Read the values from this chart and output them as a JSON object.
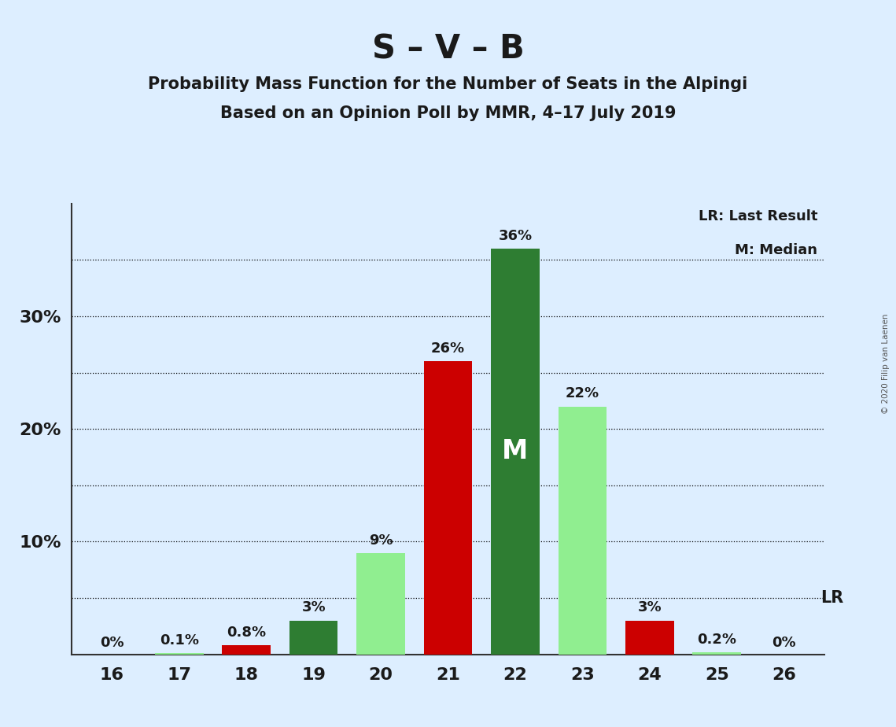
{
  "title": "S – V – B",
  "subtitle1": "Probability Mass Function for the Number of Seats in the Alpingi",
  "subtitle2": "Based on an Opinion Poll by MMR, 4–17 July 2019",
  "copyright": "© 2020 Filip van Laenen",
  "categories": [
    16,
    17,
    18,
    19,
    20,
    21,
    22,
    23,
    24,
    25,
    26
  ],
  "values": [
    0,
    0.1,
    0.8,
    3,
    9,
    26,
    36,
    22,
    3,
    0.2,
    0
  ],
  "bar_colors": [
    "#90ee90",
    "#90ee90",
    "#cc0000",
    "#2e7d32",
    "#90ee90",
    "#cc0000",
    "#2e7d32",
    "#90ee90",
    "#cc0000",
    "#90ee90",
    "#90ee90"
  ],
  "labels": [
    "0%",
    "0.1%",
    "0.8%",
    "3%",
    "9%",
    "26%",
    "36%",
    "22%",
    "3%",
    "0.2%",
    "0%"
  ],
  "median_bar": 22,
  "lr_bar": 26,
  "ylim": [
    0,
    40
  ],
  "ytick_positions": [
    10,
    20,
    30
  ],
  "ytick_labels": [
    "10%",
    "20%",
    "30%"
  ],
  "dotted_line_values": [
    5,
    10,
    15,
    20,
    25,
    30,
    35
  ],
  "background_color": "#ddeeff",
  "title_fontsize": 30,
  "subtitle_fontsize": 15,
  "legend_lr": "LR: Last Result",
  "legend_m": "M: Median",
  "lr_label": "LR",
  "bar_width": 0.72
}
